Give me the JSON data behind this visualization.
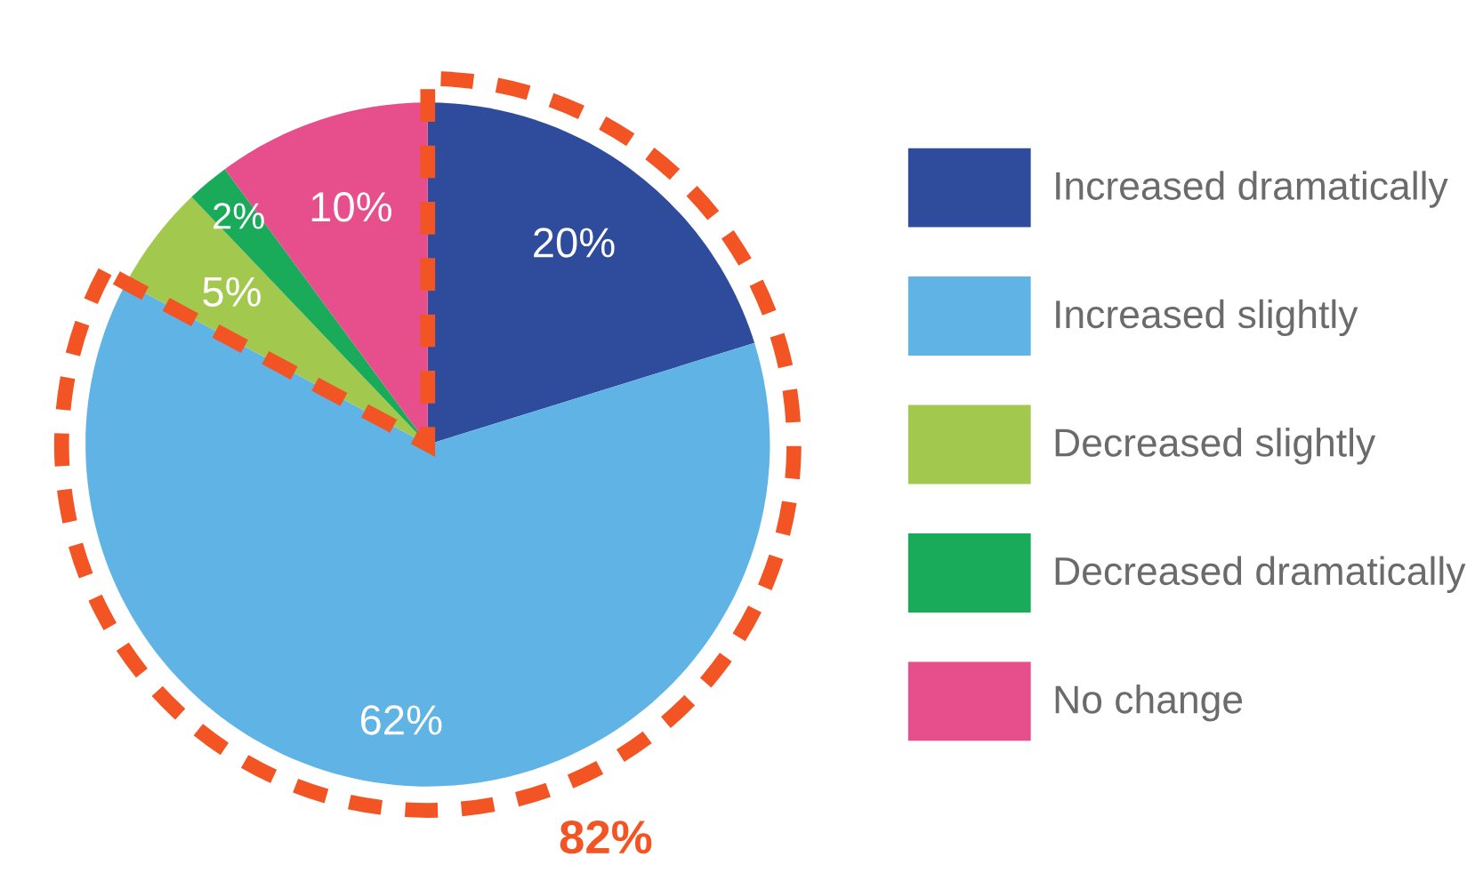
{
  "chart_data": {
    "type": "pie",
    "categories": [
      "Increased dramatically",
      "Increased slightly",
      "Decreased slightly",
      "Decreased dramatically",
      "No change"
    ],
    "values": [
      20,
      62,
      5,
      2,
      10
    ],
    "colors": [
      "#2f4b9c",
      "#60b4e5",
      "#a2c84e",
      "#19ab59",
      "#e74e8c"
    ],
    "value_labels": [
      "20%",
      "62%",
      "5%",
      "2%",
      "10%"
    ],
    "legend": "right",
    "annotations": [
      "82%"
    ]
  }
}
